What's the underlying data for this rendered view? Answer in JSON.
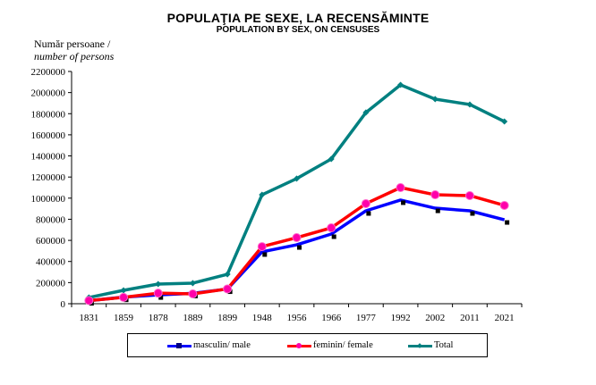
{
  "chart_data": {
    "type": "line",
    "title": "POPULAŢIA PE SEXE, LA RECENSĂMINTE",
    "subtitle": "POPULATION BY SEX, ON CENSUSES",
    "ylabel": "Număr persoane /",
    "ylabel_en": "number of persons",
    "xlabel": "",
    "ylim": [
      0,
      2200000
    ],
    "yticks": [
      0,
      200000,
      400000,
      600000,
      800000,
      1000000,
      1200000,
      1400000,
      1600000,
      1800000,
      2000000,
      2200000
    ],
    "ytick_labels": [
      "0",
      "200000",
      "400000",
      "600000",
      "800000",
      "1000000",
      "1200000",
      "1400000",
      "1600000",
      "1800000",
      "2000000",
      "2200000"
    ],
    "categories": [
      "1831",
      "1859",
      "1878",
      "1889",
      "1899",
      "1948",
      "1956",
      "1966",
      "1977",
      "1992",
      "2002",
      "2011",
      "2021"
    ],
    "grid": false,
    "legend_position": "bottom",
    "series": [
      {
        "name": "masculin/ male",
        "color": "#0000ff",
        "marker": "square",
        "marker_color": "#000000",
        "values": [
          29000,
          62000,
          84000,
          98000,
          139000,
          491000,
          558000,
          660000,
          880000,
          982000,
          905000,
          880000,
          795000
        ]
      },
      {
        "name": "feminin/ female",
        "color": "#ff0000",
        "marker": "circle",
        "marker_color": "#ff00aa",
        "values": [
          30000,
          60000,
          100000,
          93000,
          140000,
          541000,
          626000,
          719000,
          948000,
          1100000,
          1032000,
          1024000,
          931000
        ]
      },
      {
        "name": "Total",
        "color": "#008080",
        "marker": "diamond",
        "marker_color": "#008080",
        "values": [
          59000,
          127000,
          186000,
          195000,
          279000,
          1032000,
          1185000,
          1371000,
          1811000,
          2073000,
          1938000,
          1887000,
          1726000
        ]
      }
    ]
  }
}
